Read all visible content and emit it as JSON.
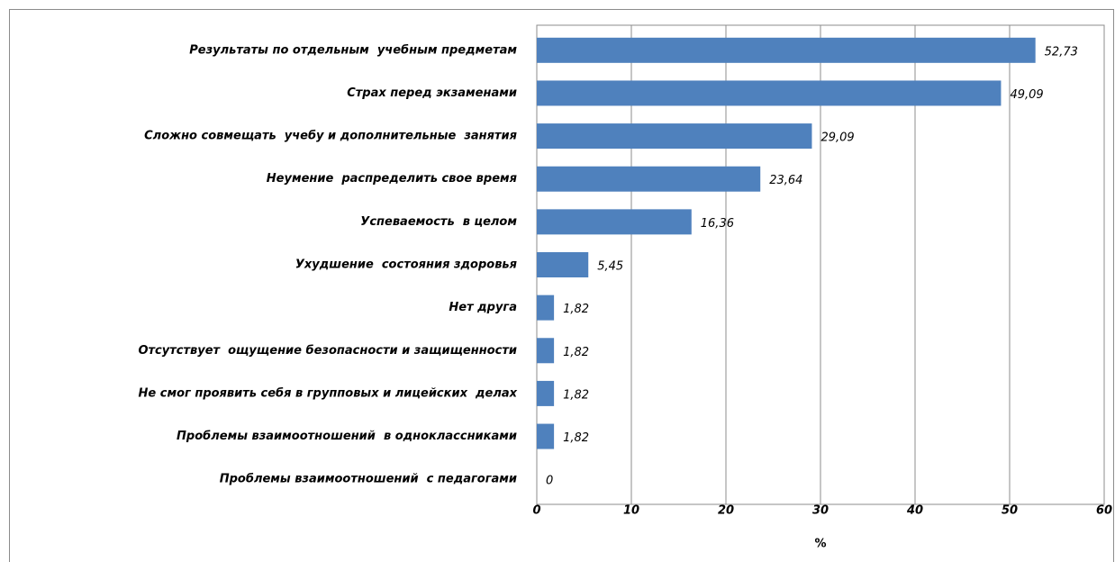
{
  "chart_data": {
    "type": "bar",
    "orientation": "horizontal",
    "categories": [
      "Результаты по отдельным  учебным предметам",
      "Страх перед экзаменами",
      "Сложно совмещать  учебу и дополнительные  занятия",
      "Неумение  распределить свое время",
      "Успеваемость  в целом",
      "Ухудшение  состояния здоровья",
      "Нет друга",
      "Отсутствует  ощущение безопасности и защищенности",
      "Не смог проявить себя в групповых и лицейских  делах",
      "Проблемы взаимоотношений  в одноклассниками",
      "Проблемы взаимоотношений  с педагогами"
    ],
    "values": [
      52.73,
      49.09,
      29.09,
      23.64,
      16.36,
      5.45,
      1.82,
      1.82,
      1.82,
      1.82,
      0
    ],
    "value_labels": [
      "52,73",
      "49,09",
      "29,09",
      "23,64",
      "16,36",
      "5,45",
      "1,82",
      "1,82",
      "1,82",
      "1,82",
      "0"
    ],
    "color": "#4f81bd",
    "xlabel": "%",
    "xlim": [
      0,
      60
    ],
    "xticks": [
      0,
      10,
      20,
      30,
      40,
      50,
      60
    ],
    "grid": true
  }
}
